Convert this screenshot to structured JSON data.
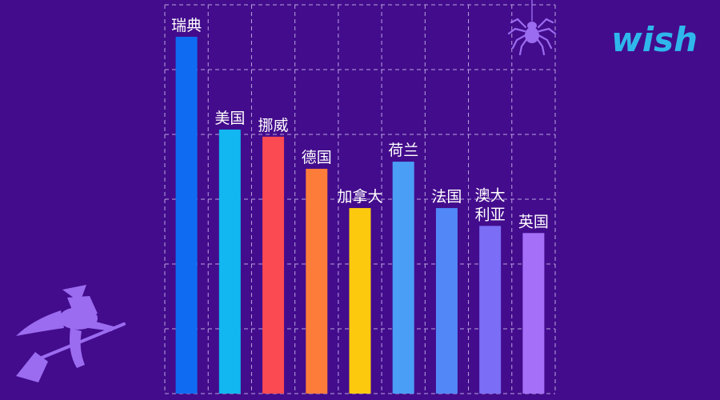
{
  "brand": {
    "logo_text": "wish",
    "logo_color": "#2fb7ec"
  },
  "decorations": {
    "top_icon": "spider-icon",
    "bottom_icon": "witch-on-broom-icon",
    "decor_color": "#9b6cf0"
  },
  "chart_data": {
    "type": "bar",
    "categories": [
      "瑞典",
      "美国",
      "挪威",
      "德国",
      "加拿大",
      "荷兰",
      "法国",
      "澳大利亚",
      "英国"
    ],
    "category_lines": [
      [
        "瑞典"
      ],
      [
        "美国"
      ],
      [
        "挪威"
      ],
      [
        "德国"
      ],
      [
        "加拿大"
      ],
      [
        "荷兰"
      ],
      [
        "法国"
      ],
      [
        "澳大",
        "利亚"
      ],
      [
        "英国"
      ]
    ],
    "values": [
      100,
      74,
      72,
      63,
      52,
      65,
      52,
      47,
      45
    ],
    "colors": [
      "#0f6cf2",
      "#12b6f0",
      "#fb4a52",
      "#fe7c3a",
      "#fdc90f",
      "#4a9ef6",
      "#5187f7",
      "#7b6df5",
      "#a570f7"
    ],
    "ylim": [
      0,
      100
    ],
    "grid": true,
    "title": "",
    "xlabel": "",
    "ylabel": ""
  }
}
